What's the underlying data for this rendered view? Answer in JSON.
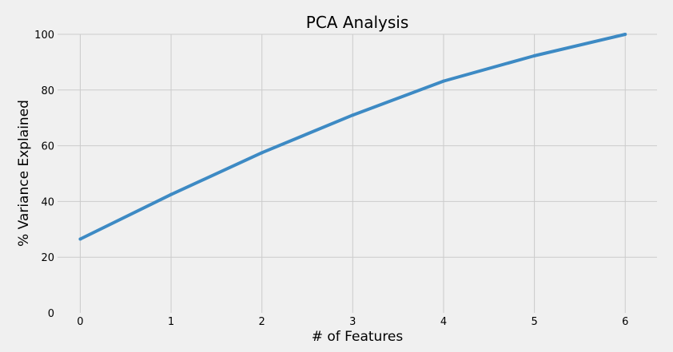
{
  "chart_data": {
    "type": "line",
    "title": "PCA Analysis",
    "xlabel": "# of Features",
    "ylabel": "% Variance Explained",
    "x": [
      0,
      1,
      2,
      3,
      4,
      5,
      6
    ],
    "series": [
      {
        "values": [
          26.5,
          42.5,
          57.5,
          71.0,
          83.2,
          92.3,
          100.0
        ]
      }
    ],
    "x_ticks": [
      "0",
      "1",
      "2",
      "3",
      "4",
      "5",
      "6"
    ],
    "y_ticks": [
      "0",
      "20",
      "40",
      "60",
      "80",
      "100"
    ],
    "xlim": [
      -0.25,
      6.35
    ],
    "ylim": [
      0,
      100
    ],
    "grid": true,
    "colors": {
      "background": "#f0f0f0",
      "grid": "#cbcbcb",
      "line": "#3d8ac4"
    }
  }
}
